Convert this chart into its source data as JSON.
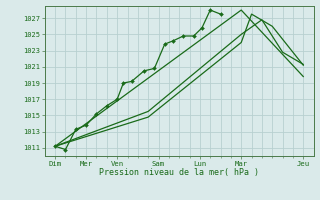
{
  "bg_color": "#daeaea",
  "grid_color": "#b8d0d0",
  "line_color": "#1a6b1a",
  "xlabel": "Pression niveau de la mer( hPa )",
  "ylim": [
    1010.0,
    1028.5
  ],
  "yticks": [
    1011,
    1013,
    1015,
    1017,
    1019,
    1021,
    1023,
    1025,
    1027
  ],
  "xlim": [
    0,
    13
  ],
  "major_xtick_positions": [
    0.5,
    2.0,
    3.5,
    5.5,
    7.5,
    9.5,
    12.5
  ],
  "major_xtick_labels": [
    "Dim",
    "Mer",
    "Ven",
    "Sam",
    "Lun",
    "Mar",
    "Jeu"
  ],
  "minor_xtick_positions": [
    0.5,
    1.0,
    1.5,
    2.0,
    2.5,
    3.0,
    3.5,
    4.0,
    4.5,
    5.0,
    5.5,
    6.0,
    6.5,
    7.0,
    7.5,
    8.0,
    8.5,
    9.0,
    9.5,
    10.0,
    10.5,
    11.0,
    11.5,
    12.0,
    12.5
  ],
  "vgrid_positions": [
    0.5,
    1.0,
    1.5,
    2.0,
    2.5,
    3.0,
    3.5,
    4.0,
    4.5,
    5.0,
    5.5,
    6.0,
    6.5,
    7.0,
    7.5,
    8.0,
    8.5,
    9.0,
    9.5,
    10.0,
    10.5,
    11.0,
    11.5,
    12.0,
    12.5
  ],
  "line1_x": [
    0.5,
    1.0,
    1.5,
    2.0,
    2.5,
    3.0,
    3.5,
    3.8,
    4.2,
    4.8,
    5.3,
    5.8,
    6.2,
    6.7,
    7.2,
    7.6,
    8.0,
    8.5
  ],
  "line1_y": [
    1011.2,
    1010.8,
    1013.3,
    1013.8,
    1015.2,
    1016.2,
    1017.0,
    1019.0,
    1019.2,
    1020.5,
    1020.8,
    1023.8,
    1024.2,
    1024.8,
    1024.8,
    1025.8,
    1028.0,
    1027.5
  ],
  "line2_x": [
    0.5,
    9.5,
    12.5
  ],
  "line2_y": [
    1011.2,
    1028.0,
    1019.8
  ],
  "line3_x": [
    0.5,
    5.0,
    9.5,
    10.5,
    11.0,
    11.5,
    12.5
  ],
  "line3_y": [
    1011.2,
    1015.5,
    1025.0,
    1026.8,
    1024.8,
    1022.8,
    1021.3
  ],
  "line4_x": [
    0.5,
    5.0,
    9.5,
    10.0,
    11.0,
    12.5
  ],
  "line4_y": [
    1011.2,
    1014.8,
    1024.0,
    1027.5,
    1026.0,
    1021.2
  ]
}
